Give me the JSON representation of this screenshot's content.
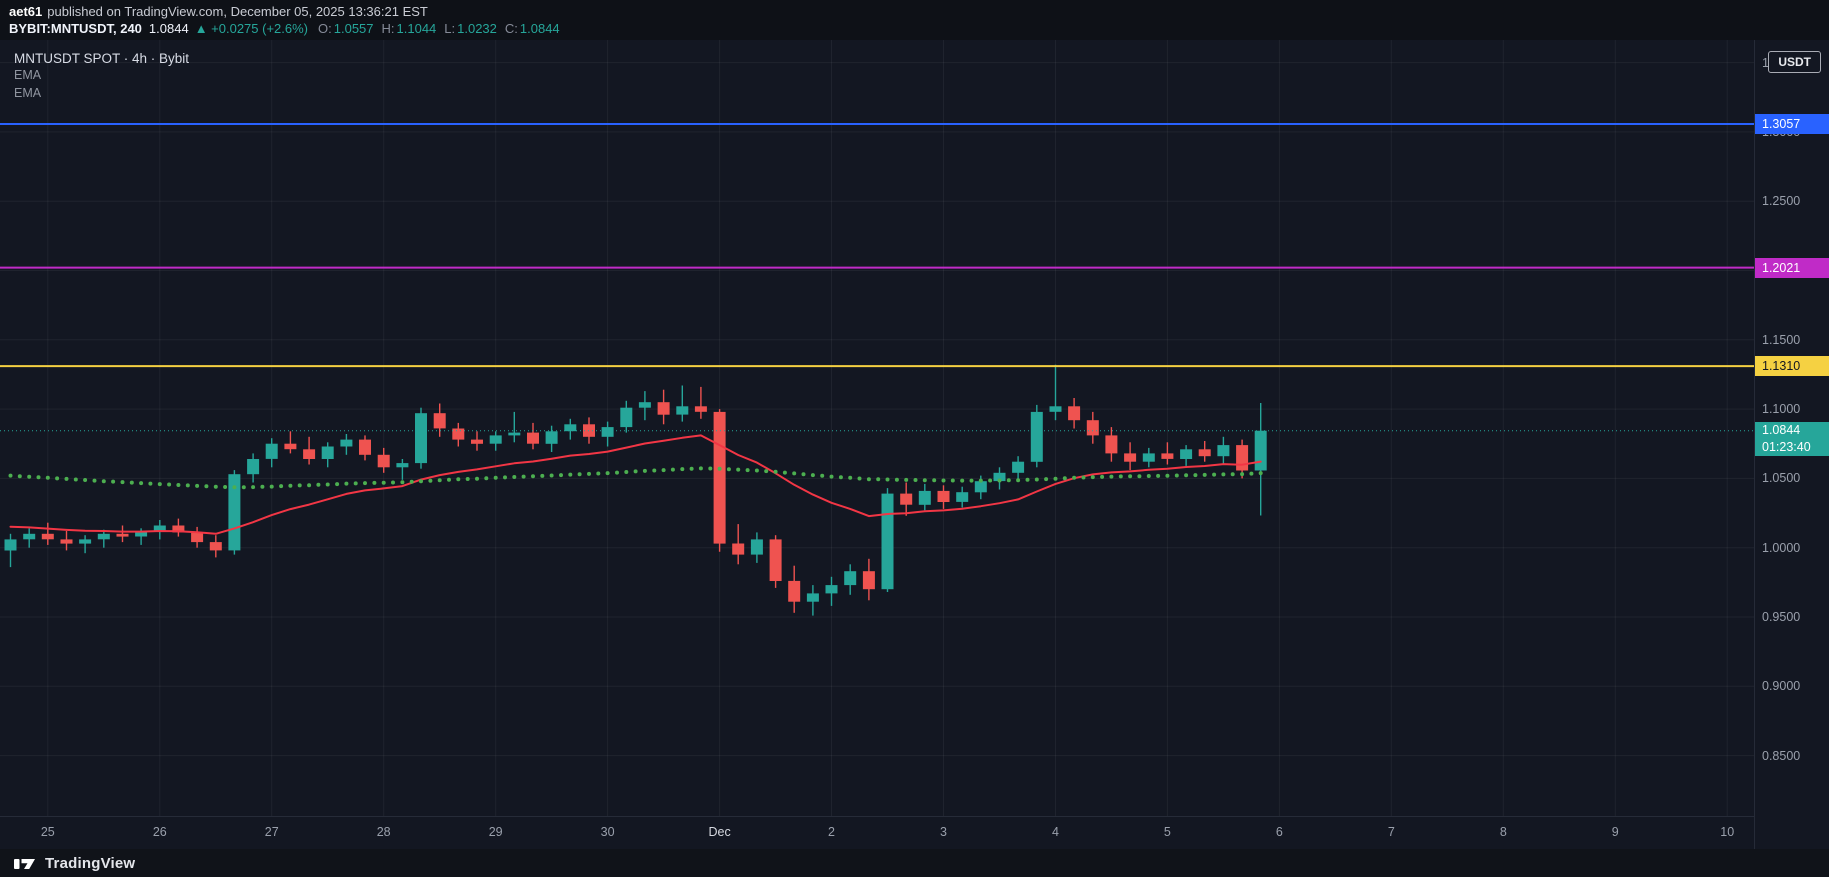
{
  "header": {
    "author": "aet61",
    "published": "published on TradingView.com, December 05, 2025 13:36:21 EST",
    "symbol": "BYBIT:MNTUSDT, 240",
    "price": "1.0844",
    "change_text": "▲ +0.0275 (+2.6%)",
    "o_label": "O:",
    "o_value": "1.0557",
    "h_label": "H:",
    "h_value": "1.1044",
    "l_label": "L:",
    "l_value": "1.0232",
    "c_label": "C:",
    "c_value": "1.0844"
  },
  "legend": {
    "title": "MNTUSDT SPOT · 4h · Bybit",
    "ema1": "EMA",
    "ema2": "EMA"
  },
  "currency_button": "USDT",
  "attribution": "TradingView",
  "colors": {
    "background": "#131722",
    "up": "#26a69a",
    "down": "#ef5350",
    "ema_fast": "#f23645",
    "ema_slow": "#4caf50",
    "level_blue": "#2962ff",
    "level_purple": "#c02bc7",
    "level_yellow": "#f5d142",
    "last_price": "#26a69a",
    "axis_text": "#9aa0ac"
  },
  "chart_data": {
    "type": "candlestick",
    "title": "MNTUSDT SPOT · 4h · Bybit",
    "symbol": "MNTUSDT",
    "exchange": "Bybit",
    "timeframe": "4h",
    "ylim": [
      0.8064,
      1.3663
    ],
    "grid": true,
    "price_ticks": [
      "1.3500",
      "1.3000",
      "1.2500",
      "1.2000",
      "1.1500",
      "1.1000",
      "1.0500",
      "1.0000",
      "0.9500",
      "0.9000",
      "0.8500"
    ],
    "time_ticks": [
      {
        "label": "25",
        "index": 2
      },
      {
        "label": "26",
        "index": 8
      },
      {
        "label": "27",
        "index": 14
      },
      {
        "label": "28",
        "index": 20
      },
      {
        "label": "29",
        "index": 26
      },
      {
        "label": "30",
        "index": 32
      },
      {
        "label": "Dec",
        "index": 38,
        "major": true
      },
      {
        "label": "2",
        "index": 44
      },
      {
        "label": "3",
        "index": 50
      },
      {
        "label": "4",
        "index": 56
      },
      {
        "label": "5",
        "index": 62
      },
      {
        "label": "6",
        "index": 68
      },
      {
        "label": "7",
        "index": 74
      },
      {
        "label": "8",
        "index": 80
      },
      {
        "label": "9",
        "index": 86
      },
      {
        "label": "10",
        "index": 92
      }
    ],
    "levels": [
      {
        "price": 1.3057,
        "label": "1.3057",
        "color": "#2962ff",
        "text_color": "#ffffff"
      },
      {
        "price": 1.2021,
        "label": "1.2021",
        "color": "#c02bc7",
        "text_color": "#ffffff"
      },
      {
        "price": 1.131,
        "label": "1.1310",
        "color": "#f5d142",
        "text_color": "#131722"
      }
    ],
    "last_price": {
      "value": 1.0844,
      "label": "1.0844",
      "countdown": "01:23:40",
      "color": "#26a69a"
    },
    "up_color": "#26a69a",
    "down_color": "#ef5350",
    "candles": [
      [
        0.998,
        1.01,
        0.986,
        1.006
      ],
      [
        1.006,
        1.014,
        1.0,
        1.01
      ],
      [
        1.01,
        1.018,
        1.002,
        1.006
      ],
      [
        1.006,
        1.012,
        0.998,
        1.003
      ],
      [
        1.003,
        1.009,
        0.996,
        1.006
      ],
      [
        1.006,
        1.013,
        1.0,
        1.01
      ],
      [
        1.01,
        1.016,
        1.004,
        1.008
      ],
      [
        1.008,
        1.014,
        1.002,
        1.012
      ],
      [
        1.012,
        1.02,
        1.006,
        1.016
      ],
      [
        1.016,
        1.021,
        1.008,
        1.011
      ],
      [
        1.011,
        1.015,
        1.0,
        1.004
      ],
      [
        1.004,
        1.009,
        0.993,
        0.998
      ],
      [
        0.998,
        1.056,
        0.995,
        1.053
      ],
      [
        1.053,
        1.068,
        1.047,
        1.064
      ],
      [
        1.064,
        1.079,
        1.058,
        1.075
      ],
      [
        1.075,
        1.084,
        1.068,
        1.071
      ],
      [
        1.071,
        1.08,
        1.06,
        1.064
      ],
      [
        1.064,
        1.076,
        1.058,
        1.073
      ],
      [
        1.073,
        1.082,
        1.067,
        1.078
      ],
      [
        1.078,
        1.081,
        1.063,
        1.067
      ],
      [
        1.067,
        1.072,
        1.054,
        1.058
      ],
      [
        1.058,
        1.064,
        1.049,
        1.061
      ],
      [
        1.061,
        1.101,
        1.057,
        1.097
      ],
      [
        1.097,
        1.104,
        1.08,
        1.086
      ],
      [
        1.086,
        1.09,
        1.073,
        1.078
      ],
      [
        1.078,
        1.084,
        1.07,
        1.075
      ],
      [
        1.075,
        1.084,
        1.07,
        1.081
      ],
      [
        1.081,
        1.098,
        1.076,
        1.083
      ],
      [
        1.083,
        1.09,
        1.071,
        1.075
      ],
      [
        1.075,
        1.088,
        1.069,
        1.084
      ],
      [
        1.084,
        1.093,
        1.078,
        1.089
      ],
      [
        1.089,
        1.094,
        1.075,
        1.08
      ],
      [
        1.08,
        1.091,
        1.073,
        1.087
      ],
      [
        1.087,
        1.106,
        1.083,
        1.101
      ],
      [
        1.101,
        1.113,
        1.092,
        1.105
      ],
      [
        1.105,
        1.114,
        1.089,
        1.096
      ],
      [
        1.096,
        1.117,
        1.091,
        1.102
      ],
      [
        1.102,
        1.116,
        1.093,
        1.098
      ],
      [
        1.098,
        1.1,
        0.997,
        1.003
      ],
      [
        1.003,
        1.017,
        0.988,
        0.995
      ],
      [
        0.995,
        1.011,
        0.989,
        1.006
      ],
      [
        1.006,
        1.009,
        0.971,
        0.976
      ],
      [
        0.976,
        0.987,
        0.953,
        0.961
      ],
      [
        0.961,
        0.973,
        0.951,
        0.967
      ],
      [
        0.967,
        0.979,
        0.958,
        0.973
      ],
      [
        0.973,
        0.988,
        0.966,
        0.983
      ],
      [
        0.983,
        0.992,
        0.962,
        0.97
      ],
      [
        0.97,
        1.043,
        0.968,
        1.039
      ],
      [
        1.039,
        1.047,
        1.023,
        1.031
      ],
      [
        1.031,
        1.046,
        1.027,
        1.041
      ],
      [
        1.041,
        1.045,
        1.028,
        1.033
      ],
      [
        1.033,
        1.044,
        1.029,
        1.04
      ],
      [
        1.04,
        1.052,
        1.035,
        1.048
      ],
      [
        1.048,
        1.058,
        1.042,
        1.054
      ],
      [
        1.054,
        1.066,
        1.048,
        1.062
      ],
      [
        1.062,
        1.103,
        1.058,
        1.098
      ],
      [
        1.098,
        1.132,
        1.092,
        1.102
      ],
      [
        1.102,
        1.108,
        1.086,
        1.092
      ],
      [
        1.092,
        1.098,
        1.075,
        1.081
      ],
      [
        1.081,
        1.087,
        1.062,
        1.068
      ],
      [
        1.068,
        1.076,
        1.056,
        1.062
      ],
      [
        1.062,
        1.072,
        1.058,
        1.068
      ],
      [
        1.068,
        1.076,
        1.06,
        1.064
      ],
      [
        1.064,
        1.074,
        1.059,
        1.071
      ],
      [
        1.071,
        1.077,
        1.062,
        1.066
      ],
      [
        1.066,
        1.08,
        1.06,
        1.074
      ],
      [
        1.074,
        1.078,
        1.05,
        1.0557
      ],
      [
        1.0557,
        1.1044,
        1.0232,
        1.0844
      ]
    ],
    "series": [
      {
        "name": "EMA fast",
        "style": "line",
        "color": "#f23645",
        "values": [
          1.0151,
          1.0146,
          1.0138,
          1.0128,
          1.0122,
          1.012,
          1.0116,
          1.0116,
          1.012,
          1.0119,
          1.0112,
          1.01,
          1.0139,
          1.0184,
          1.0235,
          1.0278,
          1.0311,
          1.0349,
          1.0388,
          1.0413,
          1.0428,
          1.0444,
          1.0491,
          1.0524,
          1.0547,
          1.0565,
          1.0587,
          1.0609,
          1.0622,
          1.0642,
          1.0664,
          1.0676,
          1.0693,
          1.0722,
          1.0752,
          1.0771,
          1.0793,
          1.081,
          1.074,
          1.0669,
          1.0614,
          1.0537,
          1.0454,
          1.0383,
          1.0324,
          1.028,
          1.0228,
          1.0243,
          1.0249,
          1.0263,
          1.0269,
          1.0281,
          1.0299,
          1.0321,
          1.0348,
          1.0405,
          1.046,
          1.0501,
          1.0529,
          1.0543,
          1.055,
          1.0562,
          1.0569,
          1.0582,
          1.0589,
          1.0603,
          1.0599,
          1.0621
        ]
      },
      {
        "name": "EMA slow",
        "style": "dots",
        "color": "#4caf50",
        "values": [
          1.052,
          1.0512,
          1.0504,
          1.0496,
          1.0488,
          1.048,
          1.0473,
          1.0466,
          1.0459,
          1.0452,
          1.0446,
          1.044,
          1.0436,
          1.0437,
          1.0441,
          1.0447,
          1.0451,
          1.0456,
          1.0462,
          1.0466,
          1.0469,
          1.0472,
          1.0479,
          1.0487,
          1.0493,
          1.0498,
          1.0504,
          1.051,
          1.0515,
          1.0521,
          1.0527,
          1.0532,
          1.0538,
          1.0546,
          1.0554,
          1.056,
          1.0567,
          1.0572,
          1.057,
          1.0563,
          1.0557,
          1.0548,
          1.0536,
          1.0524,
          1.0513,
          1.0504,
          1.0494,
          1.0492,
          1.0489,
          1.0487,
          1.0485,
          1.0484,
          1.0484,
          1.0485,
          1.0487,
          1.0492,
          1.0498,
          1.0504,
          1.0509,
          1.0513,
          1.0515,
          1.0517,
          1.0519,
          1.0522,
          1.0525,
          1.0529,
          1.0531,
          1.0538
        ]
      }
    ]
  }
}
